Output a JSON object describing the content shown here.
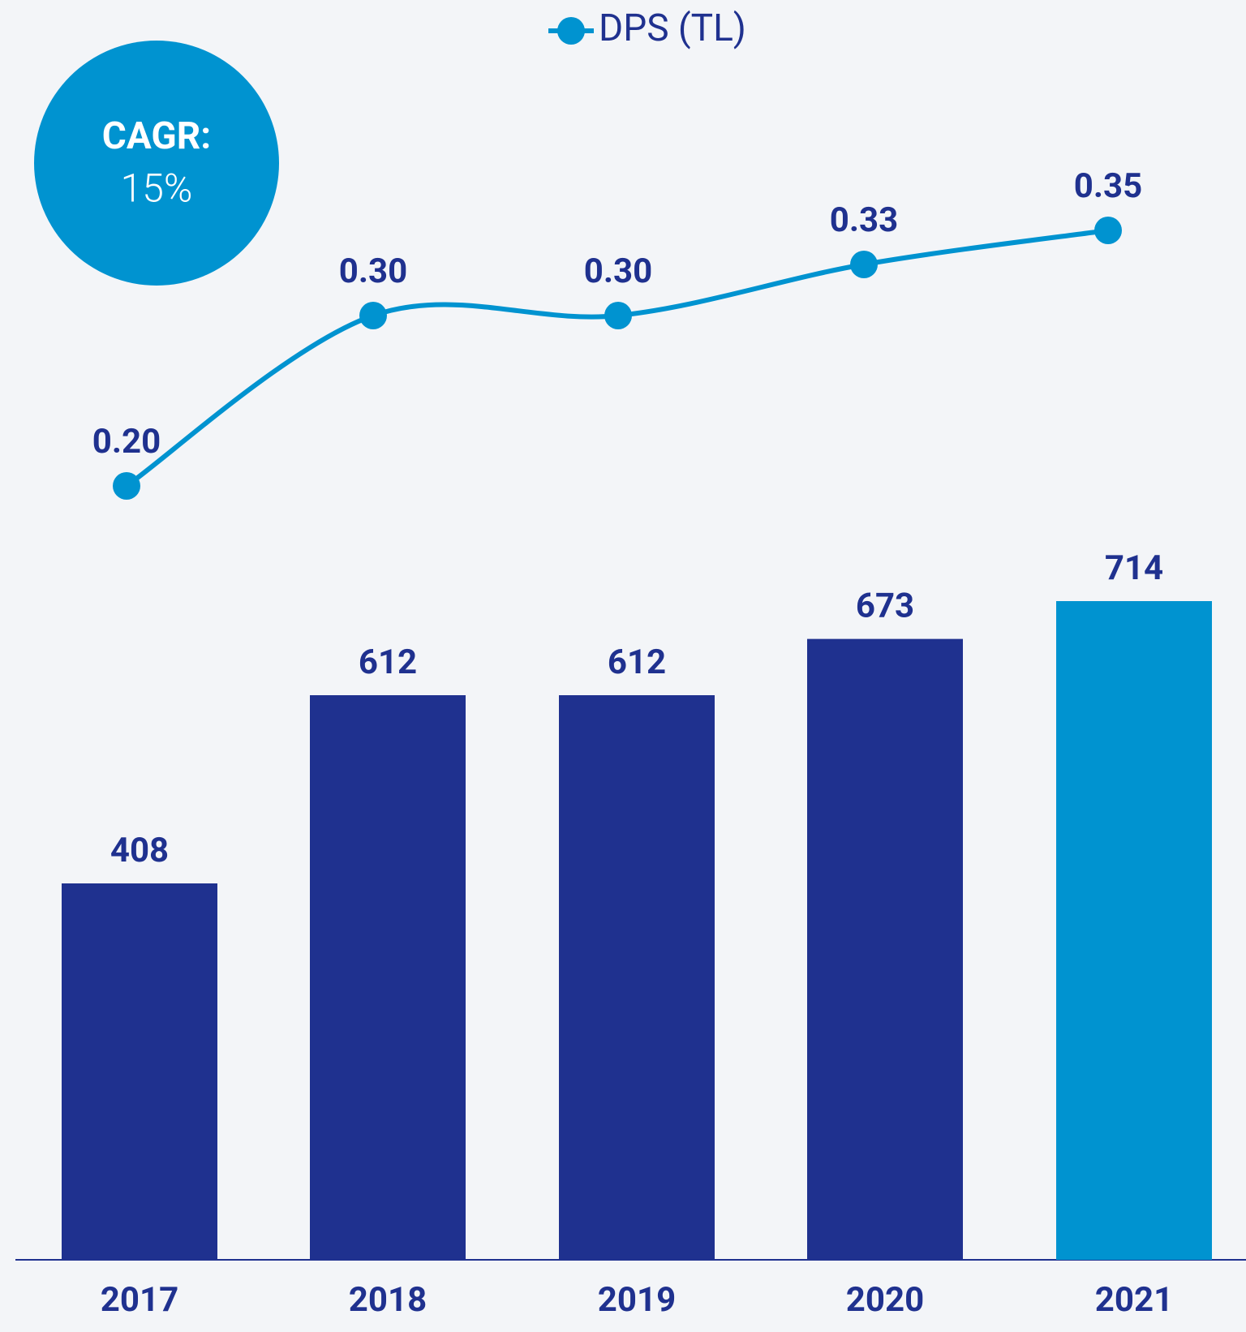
{
  "chart_data": {
    "type": "bar",
    "categories": [
      "2017",
      "2018",
      "2019",
      "2020",
      "2021"
    ],
    "series": [
      {
        "type": "bar",
        "colors": [
          "#1f318f",
          "#1f318f",
          "#1f318f",
          "#1f318f",
          "#0093d0"
        ],
        "values": [
          408,
          612,
          612,
          673,
          714
        ]
      },
      {
        "type": "line",
        "name": "DPS (TL)",
        "color": "#0093d0",
        "values": [
          0.2,
          0.3,
          0.3,
          0.33,
          0.35
        ],
        "value_labels": [
          "0.20",
          "0.30",
          "0.30",
          "0.33",
          "0.35"
        ]
      }
    ],
    "annotations": [
      "CAGR:",
      "15%"
    ],
    "legend": "top"
  }
}
